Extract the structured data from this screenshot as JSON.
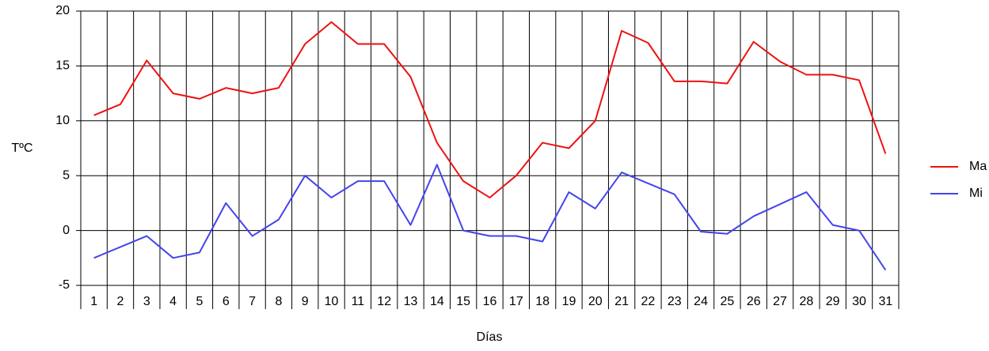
{
  "chart_data": {
    "type": "line",
    "x_label": "Días",
    "y_label": "TºC",
    "categories": [
      "1",
      "2",
      "3",
      "4",
      "5",
      "6",
      "7",
      "8",
      "9",
      "10",
      "11",
      "12",
      "13",
      "14",
      "15",
      "16",
      "17",
      "18",
      "19",
      "20",
      "21",
      "22",
      "23",
      "24",
      "25",
      "26",
      "27",
      "28",
      "29",
      "30",
      "31"
    ],
    "series": [
      {
        "name": "Ma",
        "color": "#ee1111",
        "values": [
          10.5,
          11.5,
          15.5,
          12.5,
          12,
          13,
          12.5,
          13,
          17,
          19,
          17,
          17,
          14,
          8,
          4.5,
          3,
          5,
          8,
          7.5,
          10,
          18.2,
          17.1,
          13.6,
          13.6,
          13.4,
          17.2,
          15.4,
          14.2,
          14.2,
          13.7,
          7
        ]
      },
      {
        "name": "Mi",
        "color": "#4444ee",
        "values": [
          -2.5,
          -1.5,
          -0.5,
          -2.5,
          -2,
          2.5,
          -0.5,
          1,
          5,
          3,
          4.5,
          4.5,
          0.5,
          6,
          0,
          -0.5,
          -0.5,
          -1,
          3.5,
          2,
          5.3,
          4.3,
          3.3,
          -0.1,
          -0.3,
          1.3,
          2.4,
          3.5,
          0.5,
          0,
          -3.6
        ]
      }
    ],
    "ylim": [
      -5,
      20
    ],
    "yticks": [
      -5,
      0,
      5,
      10,
      15,
      20
    ],
    "grid": true,
    "legend": "right"
  }
}
